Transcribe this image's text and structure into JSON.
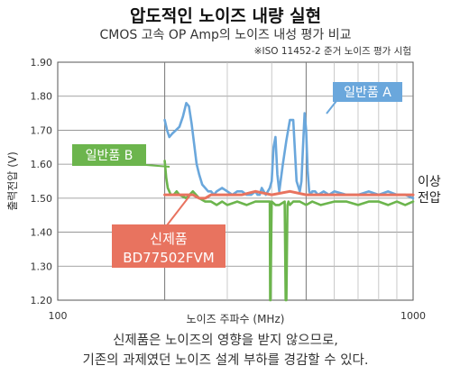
{
  "chart_data": {
    "type": "line",
    "title": "압도적인 노이즈 내량 실현",
    "subtitle": "CMOS 고속 OP Amp의 노이즈 내성 평가 비교",
    "note": "※ISO 11452-2 준거 노이즈 평가 시험",
    "xlabel": "노이즈 주파수 (MHz)",
    "ylabel": "출력전압 (V)",
    "xscale": "log",
    "xlim": [
      100,
      1000
    ],
    "ylim": [
      1.2,
      1.9
    ],
    "x_tick_labels": [
      "100",
      "1000"
    ],
    "y_tick_labels": [
      "1.20",
      "1.30",
      "1.40",
      "1.50",
      "1.60",
      "1.70",
      "1.80",
      "1.90"
    ],
    "grid": true,
    "right_annotation": [
      "이상",
      "전압"
    ],
    "footer": [
      "신제품은 노이즈의 영향을 받지 않으므로,",
      "기존의 과제였던 노이즈 설계 부하를 경감할 수 있다."
    ],
    "series": [
      {
        "name": "일반품 A",
        "color": "#6aa7dc",
        "x": [
          200,
          203,
          206,
          210,
          215,
          220,
          225,
          230,
          234,
          238,
          242,
          246,
          250,
          255,
          260,
          265,
          270,
          275,
          280,
          290,
          300,
          310,
          320,
          330,
          340,
          350,
          360,
          365,
          370,
          375,
          380,
          385,
          390,
          395,
          400,
          405,
          410,
          415,
          420,
          430,
          440,
          450,
          460,
          470,
          480,
          485,
          490,
          495,
          500,
          505,
          510,
          515,
          520,
          530,
          540,
          560,
          580,
          600,
          650,
          700,
          750,
          800,
          850,
          900,
          950,
          1000
        ],
        "y": [
          1.73,
          1.7,
          1.68,
          1.69,
          1.7,
          1.71,
          1.74,
          1.78,
          1.77,
          1.72,
          1.66,
          1.6,
          1.57,
          1.54,
          1.53,
          1.52,
          1.52,
          1.51,
          1.52,
          1.53,
          1.52,
          1.51,
          1.52,
          1.52,
          1.51,
          1.51,
          1.52,
          1.51,
          1.51,
          1.53,
          1.52,
          1.51,
          1.52,
          1.53,
          1.55,
          1.65,
          1.68,
          1.57,
          1.52,
          1.6,
          1.67,
          1.73,
          1.73,
          1.55,
          1.52,
          1.55,
          1.65,
          1.75,
          1.7,
          1.58,
          1.52,
          1.51,
          1.52,
          1.52,
          1.51,
          1.52,
          1.51,
          1.52,
          1.51,
          1.51,
          1.52,
          1.51,
          1.52,
          1.51,
          1.51,
          1.5
        ]
      },
      {
        "name": "일반품 B",
        "color": "#6cb54d",
        "x": [
          200,
          202,
          204,
          206,
          208,
          212,
          216,
          220,
          230,
          240,
          250,
          260,
          270,
          280,
          290,
          300,
          320,
          340,
          360,
          380,
          395,
          396,
          397,
          400,
          410,
          420,
          435,
          438,
          440,
          443,
          446,
          450,
          460,
          480,
          500,
          520,
          550,
          600,
          650,
          700,
          750,
          800,
          850,
          900,
          950,
          1000
        ],
        "y": [
          1.61,
          1.56,
          1.53,
          1.52,
          1.51,
          1.51,
          1.52,
          1.51,
          1.5,
          1.52,
          1.5,
          1.49,
          1.49,
          1.48,
          1.49,
          1.48,
          1.49,
          1.48,
          1.49,
          1.49,
          1.49,
          1.2,
          1.2,
          1.49,
          1.48,
          1.48,
          1.49,
          1.2,
          1.2,
          1.48,
          1.49,
          1.48,
          1.49,
          1.49,
          1.48,
          1.49,
          1.48,
          1.49,
          1.49,
          1.48,
          1.49,
          1.49,
          1.48,
          1.49,
          1.48,
          1.49
        ]
      },
      {
        "name": "신제품 BD77502FVM",
        "color": "#e8735f",
        "x": [
          200,
          240,
          250,
          260,
          270,
          280,
          300,
          330,
          360,
          400,
          450,
          500,
          550,
          600,
          700,
          800,
          900,
          1000
        ],
        "y": [
          1.51,
          1.51,
          1.5,
          1.5,
          1.51,
          1.51,
          1.51,
          1.51,
          1.52,
          1.51,
          1.52,
          1.51,
          1.51,
          1.51,
          1.51,
          1.51,
          1.51,
          1.51
        ]
      }
    ],
    "callouts": [
      {
        "lines": [
          "일반품 A"
        ],
        "color": "#6aa7dc"
      },
      {
        "lines": [
          "일반품 B"
        ],
        "color": "#6cb54d"
      },
      {
        "lines": [
          "신제품",
          "BD77502FVM"
        ],
        "color": "#e8735f"
      }
    ]
  }
}
